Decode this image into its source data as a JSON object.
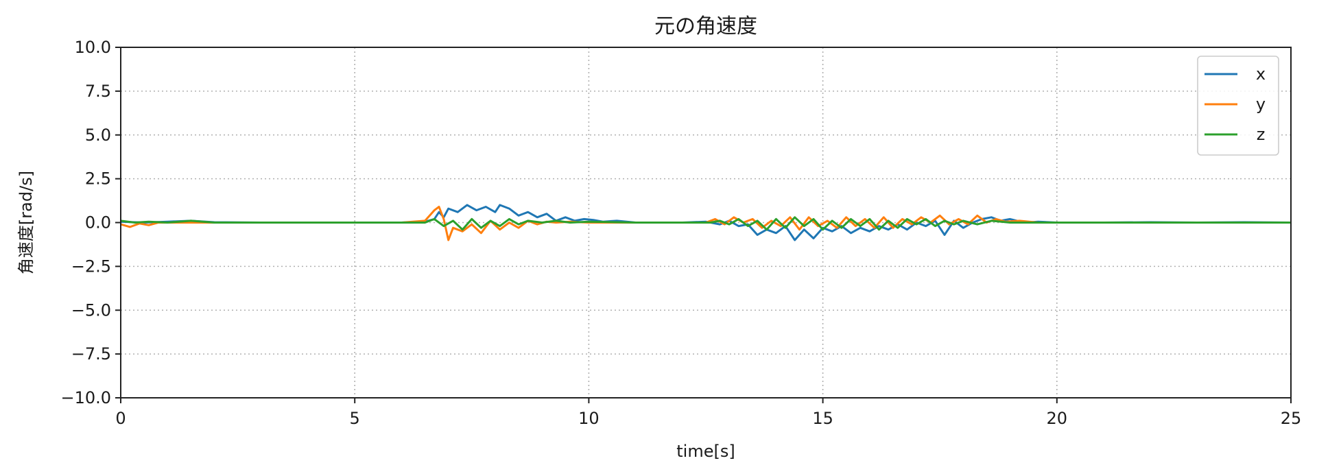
{
  "chart_data": {
    "type": "line",
    "title": "元の角速度",
    "xlabel": "time[s]",
    "ylabel": "角速度[rad/s]",
    "xlim": [
      0,
      25
    ],
    "ylim": [
      -10,
      10
    ],
    "xticks": [
      0,
      5,
      10,
      15,
      20,
      25
    ],
    "yticks": [
      10,
      7.5,
      5,
      2.5,
      0,
      -2.5,
      -5,
      -7.5,
      -10
    ],
    "xtick_labels": [
      "0",
      "5",
      "10",
      "15",
      "20",
      "25"
    ],
    "ytick_labels": [
      "10.0",
      "7.5",
      "5.0",
      "2.5",
      "0.0",
      "−2.5",
      "−5.0",
      "−7.5",
      "−10.0"
    ],
    "grid": true,
    "legend": "top-right",
    "series": [
      {
        "name": "x",
        "color": "#1f77b4",
        "points": [
          [
            0,
            0.05
          ],
          [
            0.5,
            0.0
          ],
          [
            1,
            0.05
          ],
          [
            1.5,
            0.1
          ],
          [
            2,
            0.02
          ],
          [
            3,
            0.0
          ],
          [
            4,
            0.0
          ],
          [
            5,
            0.0
          ],
          [
            6,
            0.0
          ],
          [
            6.5,
            0.05
          ],
          [
            6.7,
            0.2
          ],
          [
            6.8,
            0.6
          ],
          [
            6.9,
            0.3
          ],
          [
            7.0,
            0.8
          ],
          [
            7.2,
            0.6
          ],
          [
            7.4,
            1.0
          ],
          [
            7.6,
            0.7
          ],
          [
            7.8,
            0.9
          ],
          [
            8.0,
            0.6
          ],
          [
            8.1,
            1.0
          ],
          [
            8.3,
            0.8
          ],
          [
            8.5,
            0.4
          ],
          [
            8.7,
            0.6
          ],
          [
            8.9,
            0.3
          ],
          [
            9.1,
            0.5
          ],
          [
            9.3,
            0.1
          ],
          [
            9.5,
            0.3
          ],
          [
            9.7,
            0.1
          ],
          [
            9.9,
            0.2
          ],
          [
            10.1,
            0.15
          ],
          [
            10.3,
            0.05
          ],
          [
            10.6,
            0.1
          ],
          [
            11,
            0.0
          ],
          [
            12,
            0.0
          ],
          [
            12.5,
            0.05
          ],
          [
            12.8,
            -0.1
          ],
          [
            13.0,
            0.1
          ],
          [
            13.2,
            -0.2
          ],
          [
            13.4,
            -0.1
          ],
          [
            13.6,
            -0.7
          ],
          [
            13.8,
            -0.4
          ],
          [
            14.0,
            -0.6
          ],
          [
            14.2,
            -0.2
          ],
          [
            14.4,
            -1.0
          ],
          [
            14.6,
            -0.4
          ],
          [
            14.8,
            -0.9
          ],
          [
            15.0,
            -0.3
          ],
          [
            15.2,
            -0.5
          ],
          [
            15.4,
            -0.2
          ],
          [
            15.6,
            -0.6
          ],
          [
            15.8,
            -0.3
          ],
          [
            16.0,
            -0.5
          ],
          [
            16.2,
            -0.2
          ],
          [
            16.4,
            -0.4
          ],
          [
            16.6,
            -0.1
          ],
          [
            16.8,
            -0.4
          ],
          [
            17.0,
            0.0
          ],
          [
            17.2,
            -0.2
          ],
          [
            17.4,
            0.1
          ],
          [
            17.6,
            -0.7
          ],
          [
            17.8,
            0.1
          ],
          [
            18.0,
            -0.3
          ],
          [
            18.2,
            0.0
          ],
          [
            18.4,
            0.2
          ],
          [
            18.6,
            0.3
          ],
          [
            18.8,
            0.1
          ],
          [
            19.0,
            0.2
          ],
          [
            19.3,
            0.0
          ],
          [
            19.6,
            0.05
          ],
          [
            20,
            0.0
          ],
          [
            21,
            0.0
          ],
          [
            22,
            0.02
          ],
          [
            23,
            0.0
          ],
          [
            24,
            0.02
          ],
          [
            25,
            0.0
          ]
        ]
      },
      {
        "name": "y",
        "color": "#ff7f0e",
        "points": [
          [
            0,
            -0.1
          ],
          [
            0.2,
            -0.25
          ],
          [
            0.4,
            -0.05
          ],
          [
            0.6,
            -0.15
          ],
          [
            0.8,
            0.0
          ],
          [
            1,
            0.0
          ],
          [
            2,
            0.0
          ],
          [
            3,
            0.0
          ],
          [
            4,
            0.0
          ],
          [
            5,
            0.0
          ],
          [
            6,
            0.0
          ],
          [
            6.5,
            0.1
          ],
          [
            6.7,
            0.7
          ],
          [
            6.8,
            0.9
          ],
          [
            6.9,
            0.2
          ],
          [
            7.0,
            -1.0
          ],
          [
            7.1,
            -0.3
          ],
          [
            7.3,
            -0.5
          ],
          [
            7.5,
            -0.1
          ],
          [
            7.7,
            -0.6
          ],
          [
            7.9,
            0.1
          ],
          [
            8.1,
            -0.4
          ],
          [
            8.3,
            0.0
          ],
          [
            8.5,
            -0.3
          ],
          [
            8.7,
            0.1
          ],
          [
            8.9,
            -0.1
          ],
          [
            9.1,
            0.05
          ],
          [
            9.3,
            0.0
          ],
          [
            9.6,
            0.05
          ],
          [
            10,
            0.0
          ],
          [
            11,
            0.0
          ],
          [
            12,
            0.0
          ],
          [
            12.5,
            0.0
          ],
          [
            12.7,
            0.2
          ],
          [
            12.9,
            -0.1
          ],
          [
            13.1,
            0.3
          ],
          [
            13.3,
            0.0
          ],
          [
            13.5,
            0.2
          ],
          [
            13.7,
            -0.3
          ],
          [
            13.9,
            0.1
          ],
          [
            14.1,
            -0.2
          ],
          [
            14.3,
            0.3
          ],
          [
            14.5,
            -0.4
          ],
          [
            14.7,
            0.3
          ],
          [
            14.9,
            -0.2
          ],
          [
            15.1,
            0.1
          ],
          [
            15.3,
            -0.3
          ],
          [
            15.5,
            0.3
          ],
          [
            15.7,
            -0.2
          ],
          [
            15.9,
            0.2
          ],
          [
            16.1,
            -0.3
          ],
          [
            16.3,
            0.3
          ],
          [
            16.5,
            -0.3
          ],
          [
            16.7,
            0.2
          ],
          [
            16.9,
            -0.1
          ],
          [
            17.1,
            0.3
          ],
          [
            17.3,
            0.0
          ],
          [
            17.5,
            0.4
          ],
          [
            17.7,
            -0.1
          ],
          [
            17.9,
            0.2
          ],
          [
            18.1,
            -0.1
          ],
          [
            18.3,
            0.4
          ],
          [
            18.5,
            0.0
          ],
          [
            18.7,
            0.2
          ],
          [
            18.9,
            0.05
          ],
          [
            19.2,
            0.1
          ],
          [
            19.6,
            0.0
          ],
          [
            20,
            0.0
          ],
          [
            21,
            0.0
          ],
          [
            22,
            0.0
          ],
          [
            23,
            0.0
          ],
          [
            24,
            0.0
          ],
          [
            25,
            0.0
          ]
        ]
      },
      {
        "name": "z",
        "color": "#2ca02c",
        "points": [
          [
            0,
            0.1
          ],
          [
            0.3,
            0.0
          ],
          [
            0.6,
            0.05
          ],
          [
            1,
            0.0
          ],
          [
            1.5,
            0.1
          ],
          [
            2,
            0.0
          ],
          [
            3,
            0.0
          ],
          [
            4,
            0.0
          ],
          [
            5,
            0.0
          ],
          [
            6,
            0.0
          ],
          [
            6.5,
            0.0
          ],
          [
            6.7,
            0.2
          ],
          [
            6.9,
            -0.2
          ],
          [
            7.1,
            0.1
          ],
          [
            7.3,
            -0.4
          ],
          [
            7.5,
            0.2
          ],
          [
            7.7,
            -0.3
          ],
          [
            7.9,
            0.1
          ],
          [
            8.1,
            -0.2
          ],
          [
            8.3,
            0.2
          ],
          [
            8.5,
            -0.1
          ],
          [
            8.7,
            0.1
          ],
          [
            9.0,
            0.0
          ],
          [
            9.3,
            0.1
          ],
          [
            9.6,
            0.0
          ],
          [
            10,
            0.05
          ],
          [
            11,
            0.0
          ],
          [
            12,
            0.0
          ],
          [
            12.6,
            0.0
          ],
          [
            12.8,
            0.1
          ],
          [
            13.0,
            -0.1
          ],
          [
            13.2,
            0.2
          ],
          [
            13.4,
            -0.2
          ],
          [
            13.6,
            0.1
          ],
          [
            13.8,
            -0.4
          ],
          [
            14.0,
            0.2
          ],
          [
            14.2,
            -0.3
          ],
          [
            14.4,
            0.3
          ],
          [
            14.6,
            -0.2
          ],
          [
            14.8,
            0.2
          ],
          [
            15.0,
            -0.4
          ],
          [
            15.2,
            0.1
          ],
          [
            15.4,
            -0.3
          ],
          [
            15.6,
            0.2
          ],
          [
            15.8,
            -0.2
          ],
          [
            16.0,
            0.2
          ],
          [
            16.2,
            -0.4
          ],
          [
            16.4,
            0.1
          ],
          [
            16.6,
            -0.3
          ],
          [
            16.8,
            0.2
          ],
          [
            17.0,
            -0.1
          ],
          [
            17.2,
            0.2
          ],
          [
            17.4,
            -0.2
          ],
          [
            17.6,
            0.1
          ],
          [
            17.8,
            -0.1
          ],
          [
            18.0,
            0.1
          ],
          [
            18.3,
            -0.1
          ],
          [
            18.6,
            0.1
          ],
          [
            19.0,
            0.0
          ],
          [
            19.5,
            0.0
          ],
          [
            20,
            0.0
          ],
          [
            21,
            0.0
          ],
          [
            22,
            0.0
          ],
          [
            23,
            0.0
          ],
          [
            24,
            0.0
          ],
          [
            25,
            0.0
          ]
        ]
      }
    ]
  }
}
